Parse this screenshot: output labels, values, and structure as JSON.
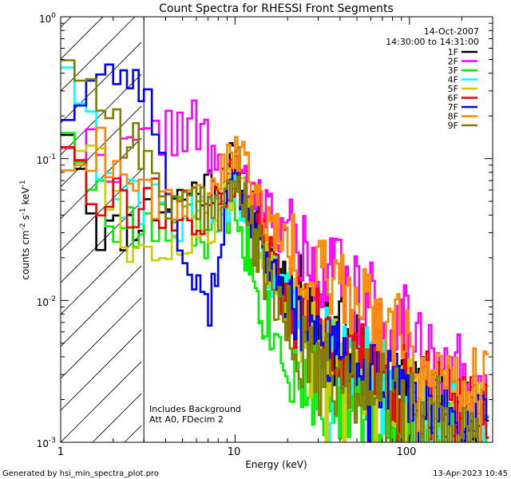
{
  "chart_data": {
    "type": "line",
    "title": "Count Spectra for RHESSI Front Segments",
    "xlabel": "Energy (keV)",
    "ylabel_main": "counts cm",
    "ylabel_sup1": "-2",
    "ylabel_mid": " s",
    "ylabel_sup2": "-1",
    "ylabel_end": " keV",
    "ylabel_sup3": "-1",
    "xscale": "log",
    "yscale": "log",
    "xlim": [
      1,
      300
    ],
    "ylim": [
      0.001,
      1
    ],
    "xticks": [
      {
        "value": 1,
        "label": "1"
      },
      {
        "value": 10,
        "label": "10"
      },
      {
        "value": 100,
        "label": "100"
      }
    ],
    "yticks": [
      {
        "value": 1,
        "base": "10",
        "exp": "0"
      },
      {
        "value": 0.1,
        "base": "10",
        "exp": "-1"
      },
      {
        "value": 0.01,
        "base": "10",
        "exp": "-2"
      },
      {
        "value": 0.001,
        "base": "10",
        "exp": "-3"
      }
    ],
    "excluded_region": {
      "x_from": 1,
      "x_to": 3
    },
    "header_right": {
      "date": "14-Oct-2007",
      "time_range": "14:30:00 to 14:31:00"
    },
    "annotations": [
      "Includes Background",
      "Att A0, FDecim 2"
    ],
    "footer_left": "Generated by hsi_min_spectra_plot.pro",
    "footer_right": "13-Apr-2023 10:45",
    "legend_position": "top-right",
    "series": [
      {
        "name": "1F",
        "color": "#000000",
        "anchors": [
          [
            1.1,
            0.18
          ],
          [
            1.3,
            0.1
          ],
          [
            1.6,
            0.032
          ],
          [
            2.2,
            0.03
          ],
          [
            3,
            0.04
          ],
          [
            5,
            0.055
          ],
          [
            7,
            0.065
          ],
          [
            9,
            0.085
          ],
          [
            10,
            0.1
          ],
          [
            12,
            0.05
          ],
          [
            15,
            0.025
          ],
          [
            20,
            0.014
          ],
          [
            30,
            0.008
          ],
          [
            40,
            0.006
          ],
          [
            60,
            0.004
          ],
          [
            100,
            0.0025
          ],
          [
            150,
            0.0018
          ],
          [
            200,
            0.0015
          ],
          [
            280,
            0.0012
          ]
        ],
        "jitter": 0.17,
        "seed": 11
      },
      {
        "name": "2F",
        "color": "#ff00ff",
        "anchors": [
          [
            1.1,
            0.15
          ],
          [
            1.3,
            0.12
          ],
          [
            1.6,
            0.11
          ],
          [
            2.2,
            0.1
          ],
          [
            3,
            0.12
          ],
          [
            4,
            0.16
          ],
          [
            6,
            0.17
          ],
          [
            7,
            0.12
          ],
          [
            8,
            0.07
          ],
          [
            9,
            0.06
          ],
          [
            10,
            0.08
          ],
          [
            12,
            0.055
          ],
          [
            15,
            0.045
          ],
          [
            20,
            0.03
          ],
          [
            30,
            0.018
          ],
          [
            40,
            0.013
          ],
          [
            60,
            0.009
          ],
          [
            100,
            0.006
          ],
          [
            150,
            0.0045
          ],
          [
            200,
            0.003
          ],
          [
            280,
            0.0022
          ]
        ],
        "jitter": 0.2,
        "seed": 22
      },
      {
        "name": "3F",
        "color": "#00ee00",
        "anchors": [
          [
            1.1,
            0.2
          ],
          [
            1.3,
            0.12
          ],
          [
            1.6,
            0.05
          ],
          [
            2.2,
            0.03
          ],
          [
            3,
            0.03
          ],
          [
            5,
            0.035
          ],
          [
            7,
            0.03
          ],
          [
            9,
            0.04
          ],
          [
            10,
            0.06
          ],
          [
            12,
            0.02
          ],
          [
            15,
            0.008
          ],
          [
            20,
            0.004
          ],
          [
            30,
            0.0028
          ],
          [
            40,
            0.0022
          ],
          [
            60,
            0.0017
          ],
          [
            100,
            0.0014
          ],
          [
            150,
            0.0012
          ],
          [
            200,
            0.0011
          ],
          [
            280,
            0.001
          ]
        ],
        "jitter": 0.24,
        "seed": 33
      },
      {
        "name": "4F",
        "color": "#00ffff",
        "anchors": [
          [
            1.1,
            0.55
          ],
          [
            1.3,
            0.3
          ],
          [
            1.6,
            0.1
          ],
          [
            2.2,
            0.045
          ],
          [
            3,
            0.05
          ],
          [
            5,
            0.04
          ],
          [
            7,
            0.035
          ],
          [
            9,
            0.05
          ],
          [
            10,
            0.07
          ],
          [
            12,
            0.04
          ],
          [
            15,
            0.02
          ],
          [
            20,
            0.009
          ],
          [
            30,
            0.005
          ],
          [
            40,
            0.004
          ],
          [
            60,
            0.003
          ],
          [
            100,
            0.0022
          ],
          [
            150,
            0.0017
          ],
          [
            200,
            0.0014
          ],
          [
            280,
            0.0012
          ]
        ],
        "jitter": 0.2,
        "seed": 44
      },
      {
        "name": "5F",
        "color": "#cccc00",
        "anchors": [
          [
            1.1,
            0.15
          ],
          [
            1.3,
            0.14
          ],
          [
            1.6,
            0.12
          ],
          [
            2.2,
            0.04
          ],
          [
            3,
            0.018
          ],
          [
            5,
            0.03
          ],
          [
            7,
            0.03
          ],
          [
            9,
            0.05
          ],
          [
            10,
            0.08
          ],
          [
            12,
            0.04
          ],
          [
            15,
            0.018
          ],
          [
            20,
            0.008
          ],
          [
            30,
            0.005
          ],
          [
            40,
            0.004
          ],
          [
            60,
            0.003
          ],
          [
            100,
            0.0022
          ],
          [
            150,
            0.0018
          ],
          [
            200,
            0.0015
          ],
          [
            280,
            0.0012
          ]
        ],
        "jitter": 0.2,
        "seed": 55
      },
      {
        "name": "6F",
        "color": "#ee0000",
        "anchors": [
          [
            1.1,
            0.15
          ],
          [
            1.3,
            0.12
          ],
          [
            1.6,
            0.06
          ],
          [
            2.2,
            0.045
          ],
          [
            3,
            0.05
          ],
          [
            5,
            0.045
          ],
          [
            7,
            0.04
          ],
          [
            9,
            0.06
          ],
          [
            10,
            0.08
          ],
          [
            12,
            0.045
          ],
          [
            15,
            0.022
          ],
          [
            20,
            0.01
          ],
          [
            30,
            0.006
          ],
          [
            40,
            0.0045
          ],
          [
            60,
            0.0035
          ],
          [
            100,
            0.0026
          ],
          [
            150,
            0.002
          ],
          [
            200,
            0.0017
          ],
          [
            280,
            0.0014
          ]
        ],
        "jitter": 0.2,
        "seed": 66
      },
      {
        "name": "7F",
        "color": "#0000ff",
        "anchors": [
          [
            1.1,
            0.22
          ],
          [
            1.3,
            0.28
          ],
          [
            1.6,
            0.38
          ],
          [
            2.2,
            0.42
          ],
          [
            3,
            0.35
          ],
          [
            3.5,
            0.15
          ],
          [
            4.2,
            0.05
          ],
          [
            5,
            0.02
          ],
          [
            6,
            0.012
          ],
          [
            7,
            0.008
          ],
          [
            8,
            0.02
          ],
          [
            9,
            0.05
          ],
          [
            10,
            0.08
          ],
          [
            12,
            0.04
          ],
          [
            15,
            0.02
          ],
          [
            20,
            0.009
          ],
          [
            30,
            0.005
          ],
          [
            40,
            0.004
          ],
          [
            60,
            0.003
          ],
          [
            100,
            0.0023
          ],
          [
            150,
            0.0018
          ],
          [
            200,
            0.0015
          ],
          [
            280,
            0.0012
          ]
        ],
        "jitter": 0.15,
        "seed": 77
      },
      {
        "name": "8F",
        "color": "#ff8800",
        "anchors": [
          [
            1.1,
            0.1
          ],
          [
            1.3,
            0.11
          ],
          [
            1.6,
            0.12
          ],
          [
            2.2,
            0.1
          ],
          [
            3,
            0.06
          ],
          [
            5,
            0.05
          ],
          [
            7,
            0.06
          ],
          [
            9,
            0.1
          ],
          [
            10,
            0.13
          ],
          [
            12,
            0.07
          ],
          [
            15,
            0.04
          ],
          [
            20,
            0.025
          ],
          [
            30,
            0.016
          ],
          [
            40,
            0.012
          ],
          [
            60,
            0.008
          ],
          [
            100,
            0.005
          ],
          [
            150,
            0.0035
          ],
          [
            200,
            0.0028
          ],
          [
            280,
            0.0022
          ]
        ],
        "jitter": 0.18,
        "seed": 88
      },
      {
        "name": "9F",
        "color": "#808000",
        "anchors": [
          [
            1.1,
            0.62
          ],
          [
            1.3,
            0.45
          ],
          [
            1.6,
            0.28
          ],
          [
            2.2,
            0.18
          ],
          [
            3,
            0.1
          ],
          [
            4,
            0.06
          ],
          [
            5,
            0.04
          ],
          [
            7,
            0.04
          ],
          [
            9,
            0.06
          ],
          [
            10,
            0.07
          ],
          [
            12,
            0.035
          ],
          [
            15,
            0.015
          ],
          [
            20,
            0.006
          ],
          [
            30,
            0.0035
          ],
          [
            40,
            0.0028
          ],
          [
            60,
            0.0022
          ],
          [
            100,
            0.0017
          ],
          [
            150,
            0.0013
          ],
          [
            200,
            0.0011
          ],
          [
            280,
            0.001
          ]
        ],
        "jitter": 0.22,
        "seed": 99
      }
    ]
  }
}
